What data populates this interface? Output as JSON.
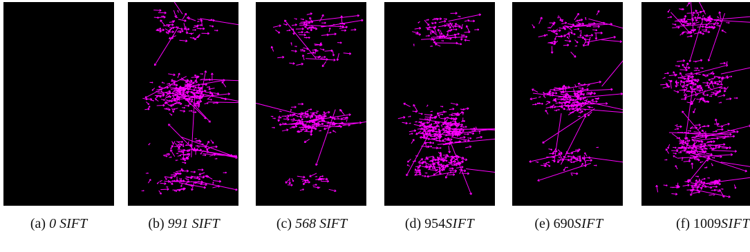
{
  "figure": {
    "panels": [
      {
        "id": "a",
        "letter": "(a)",
        "count": "0",
        "unit": "SIFT",
        "style": "italic",
        "density": 0
      },
      {
        "id": "b",
        "letter": "(b)",
        "count": "991",
        "unit": "SIFT",
        "style": "italic",
        "density": 0.85
      },
      {
        "id": "c",
        "letter": "(c)",
        "count": "568",
        "unit": "SIFT",
        "style": "italic",
        "density": 0.55
      },
      {
        "id": "d",
        "letter": "(d)",
        "count": "954",
        "unit": "SIFT",
        "style": "math",
        "density": 0.85
      },
      {
        "id": "e",
        "letter": "(e)",
        "count": "690",
        "unit": "SIFT",
        "style": "math",
        "density": 0.62
      },
      {
        "id": "f",
        "letter": "(f)",
        "count": "1009",
        "unit": "SIFT",
        "style": "math",
        "density": 0.9
      }
    ],
    "feature_color": "#ff00ff",
    "panel_background": "#000000"
  }
}
